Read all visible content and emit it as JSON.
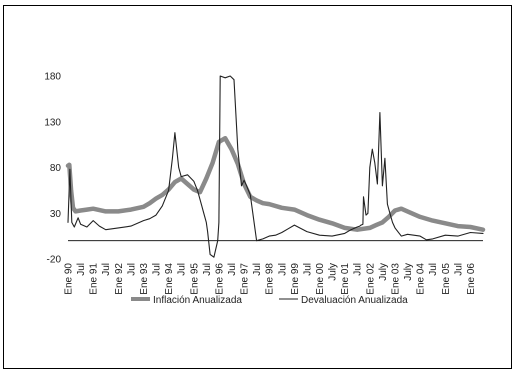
{
  "chart_data": {
    "type": "line",
    "ylim": [
      -20,
      180
    ],
    "yticks": [
      -20,
      30,
      80,
      130,
      180
    ],
    "x_labels": [
      "Ene 90",
      "Jul",
      "Ene 91",
      "Jul",
      "Ene 92",
      "Jul",
      "Ene 93",
      "Jul",
      "Ene 94",
      "Jul",
      "Ene 95",
      "Jul",
      "Ene 96",
      "Jul",
      "Ene 97",
      "Jul",
      "Ene 98",
      "Jul",
      "Ene 99",
      "Jul",
      "Ene 00",
      "July",
      "Ene 01",
      "Jul",
      "Ene 02",
      "July",
      "Ene 03",
      "July",
      "Ene 04",
      "Jul",
      "Ene 05",
      "Jul",
      "Ene 06"
    ],
    "x_range": [
      0,
      33
    ],
    "legend_position": "bottom",
    "series": [
      {
        "name": "Inflación Anualizada",
        "color": "#8a8a8a",
        "style": "thick",
        "x": [
          0,
          0.1,
          0.25,
          0.4,
          0.6,
          1,
          1.5,
          2,
          3,
          4,
          5,
          6,
          6.5,
          7,
          7.5,
          8,
          8.5,
          9,
          9.5,
          10,
          10.5,
          11,
          11.5,
          12,
          12.5,
          13,
          13.5,
          14,
          14.5,
          15,
          15.5,
          16,
          17,
          18,
          19,
          20,
          21,
          22,
          23,
          24,
          24.5,
          25,
          25.5,
          26,
          26.5,
          27,
          28,
          29,
          30,
          31,
          32,
          33
        ],
        "y": [
          82,
          83,
          55,
          36,
          32,
          33,
          34,
          35,
          32,
          32,
          34,
          37,
          41,
          46,
          50,
          56,
          64,
          68,
          62,
          56,
          53,
          68,
          85,
          108,
          112,
          100,
          84,
          62,
          48,
          44,
          41,
          40,
          36,
          34,
          28,
          23,
          19,
          14,
          12,
          14,
          17,
          20,
          26,
          33,
          35,
          32,
          26,
          22,
          19,
          16,
          15,
          12
        ]
      },
      {
        "name": "Devaluación Anualizada",
        "color": "#222222",
        "style": "thin",
        "x": [
          0,
          0.15,
          0.3,
          0.5,
          0.8,
          1,
          1.5,
          2,
          2.5,
          3,
          4,
          5,
          6,
          6.5,
          7,
          7.5,
          8,
          8.3,
          8.5,
          8.8,
          9,
          9.5,
          10,
          10.3,
          10.6,
          10.8,
          11,
          11.1,
          11.3,
          11.6,
          11.9,
          12,
          12.1,
          12.5,
          12.9,
          13.2,
          13.5,
          13.8,
          14,
          14.2,
          14.5,
          15,
          15.5,
          16,
          16.5,
          17,
          17.5,
          18,
          19,
          20,
          21,
          22,
          22.5,
          23,
          23.2,
          23.3,
          23.45,
          23.5,
          23.7,
          23.85,
          24,
          24.2,
          24.4,
          24.6,
          24.8,
          25,
          25.2,
          25.4,
          25.6,
          25.8,
          26,
          26.5,
          27,
          27.5,
          28,
          28.5,
          29,
          30,
          31,
          32,
          33
        ],
        "y": [
          20,
          78,
          20,
          15,
          25,
          18,
          15,
          22,
          16,
          12,
          14,
          16,
          22,
          24,
          28,
          38,
          55,
          90,
          118,
          80,
          70,
          72,
          65,
          55,
          40,
          30,
          20,
          10,
          -15,
          -18,
          0,
          20,
          180,
          178,
          180,
          176,
          100,
          60,
          66,
          60,
          50,
          0,
          2,
          5,
          6,
          9,
          13,
          17,
          10,
          6,
          5,
          8,
          12,
          15,
          16,
          17,
          18,
          48,
          28,
          30,
          80,
          100,
          85,
          62,
          140,
          60,
          90,
          40,
          30,
          20,
          14,
          5,
          7,
          6,
          5,
          1,
          2,
          6,
          5,
          9,
          8
        ]
      }
    ]
  }
}
